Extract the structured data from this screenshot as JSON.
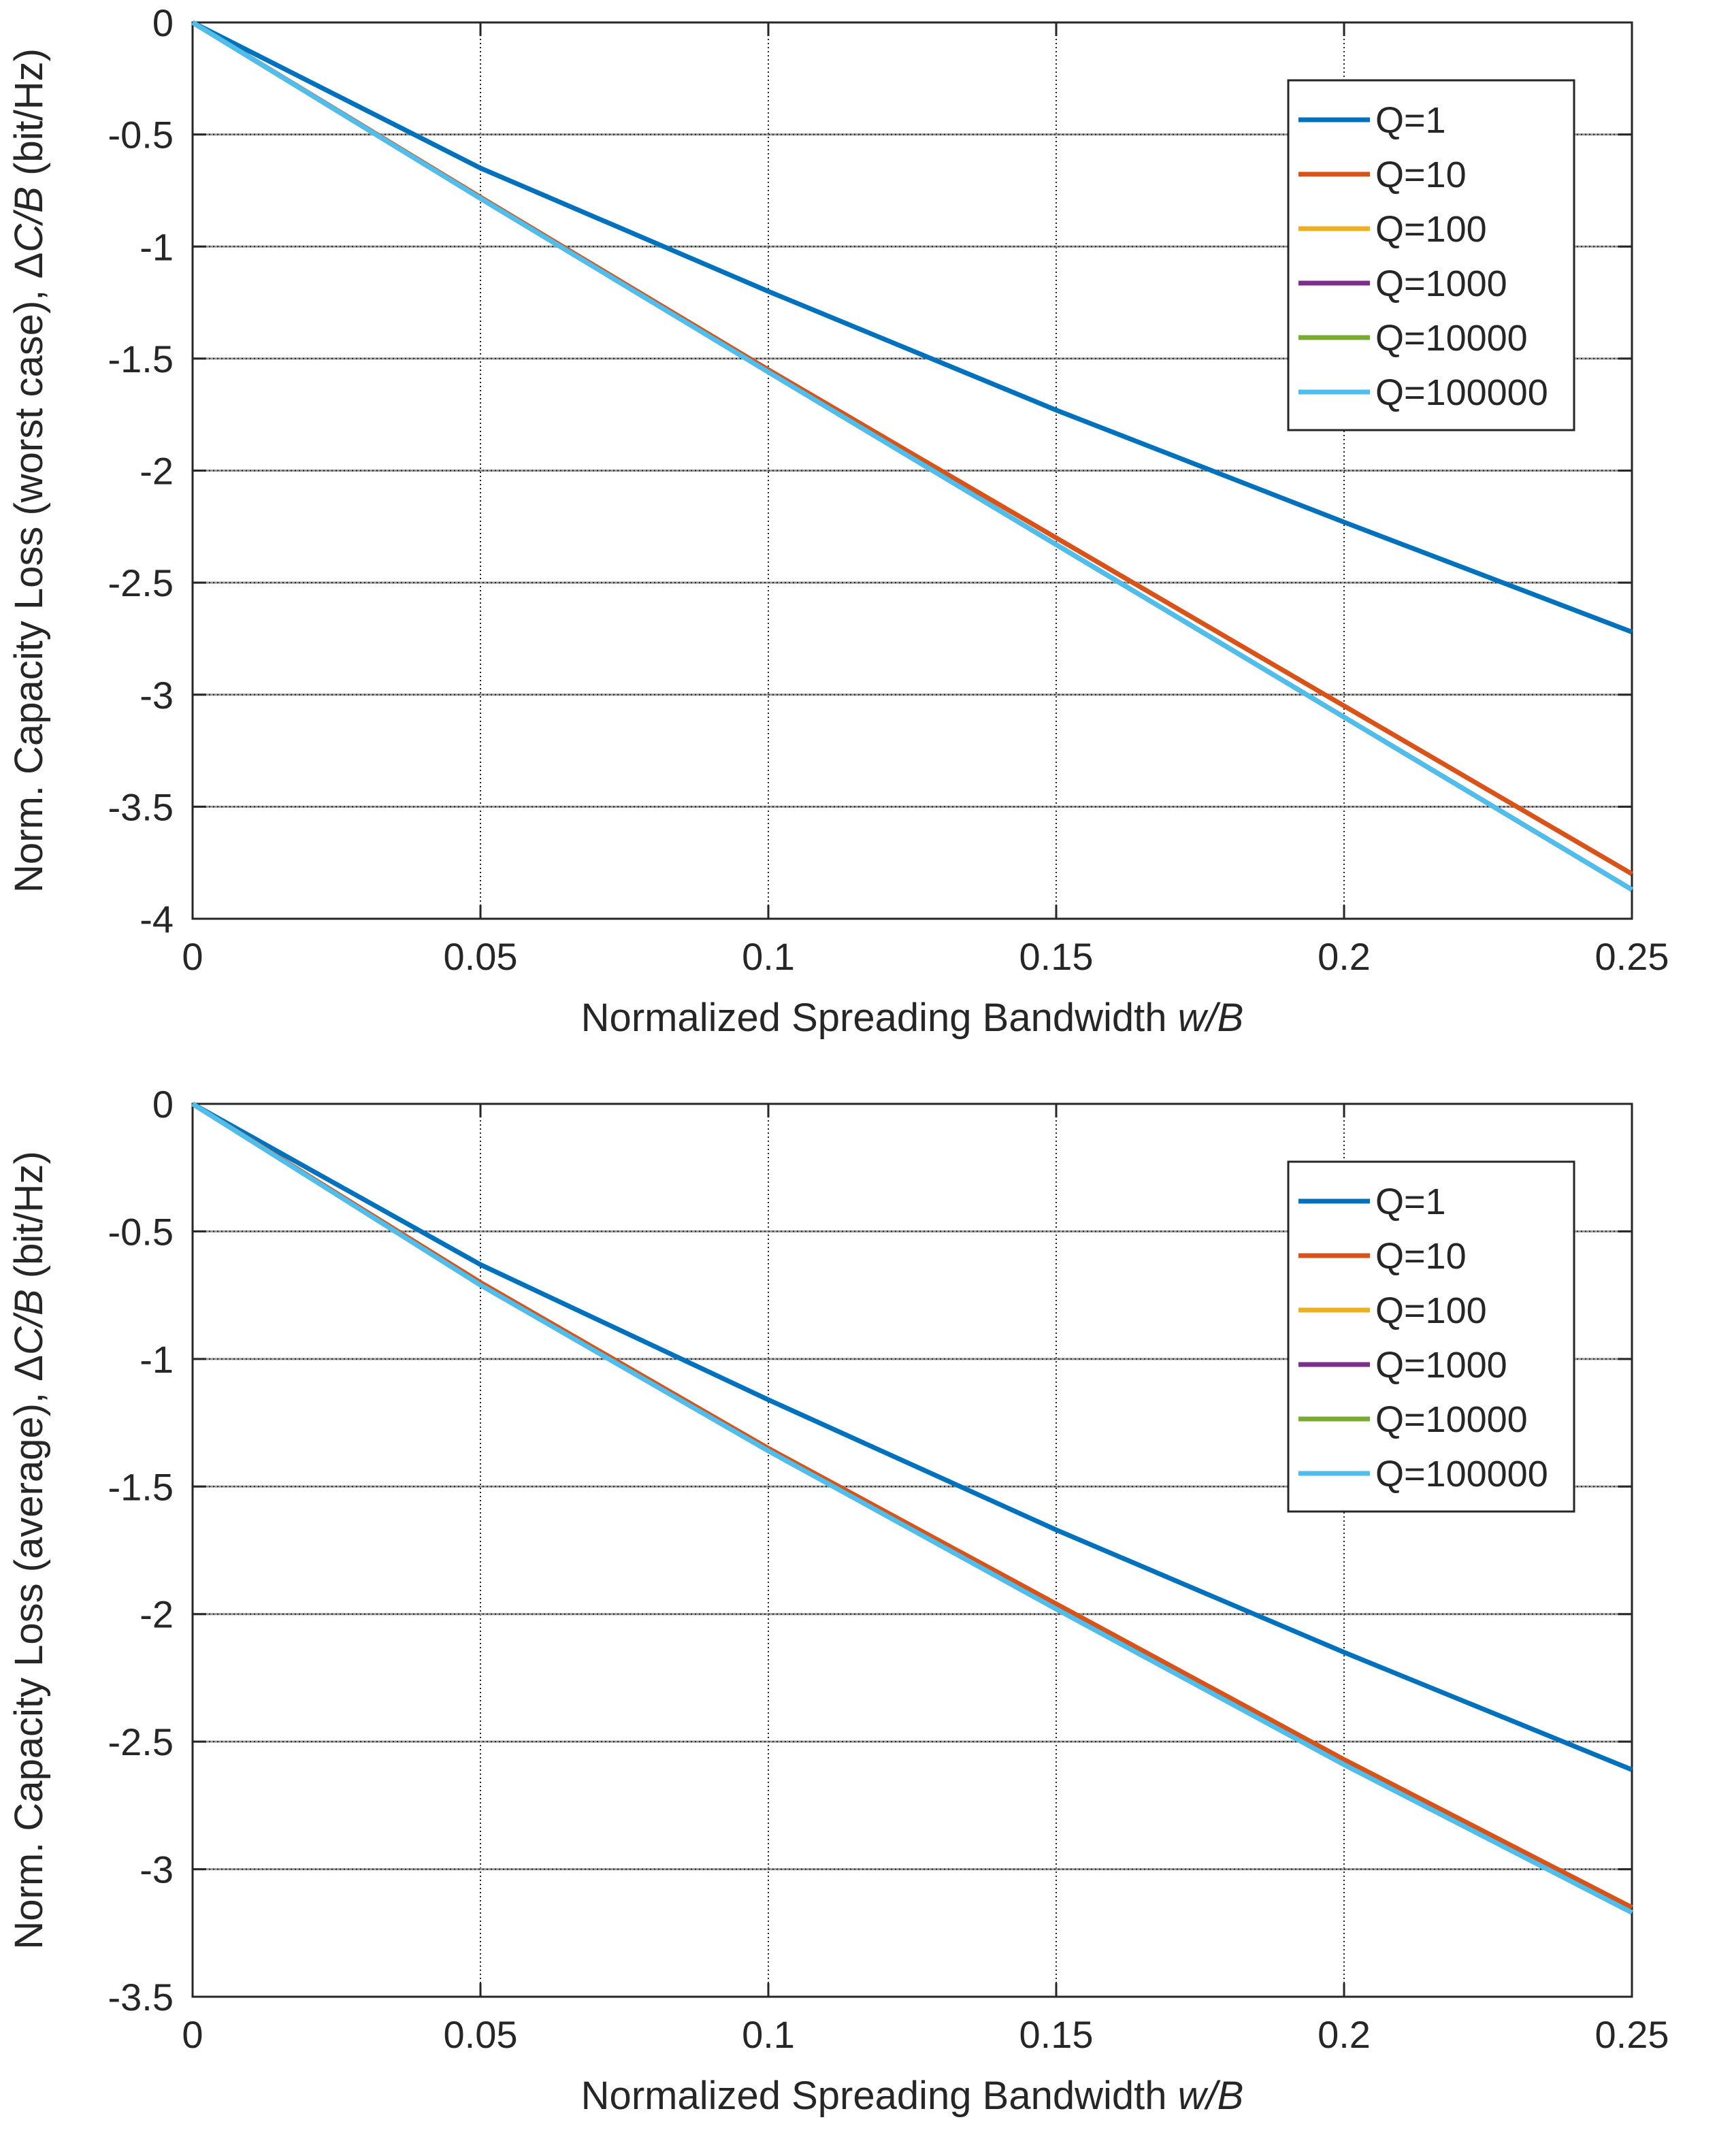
{
  "colors": {
    "Q=1": "#0072BD",
    "Q=10": "#D95319",
    "Q=100": "#EDB120",
    "Q=1000": "#7E2F8E",
    "Q=10000": "#77AC30",
    "Q=100000": "#4DBEEE",
    "grid_dotted": "#262626",
    "grid_solid": "#999999",
    "axes": "#262626"
  },
  "chart_data": [
    {
      "type": "line",
      "title": "",
      "xlabel": "Normalized Spreading Bandwidth",
      "xlabel_italic": "w/B",
      "ylabel": "Norm. Capacity Loss (worst case),",
      "ylabel_symbol": "Δ",
      "ylabel_italic": "C/B",
      "ylabel_unit": "(bit/Hz)",
      "xlim": [
        0,
        0.25
      ],
      "ylim": [
        -4,
        0
      ],
      "xticks": [
        0,
        0.05,
        0.1,
        0.15,
        0.2,
        0.25
      ],
      "xtick_labels": [
        "0",
        "0.05",
        "0.1",
        "0.15",
        "0.2",
        "0.25"
      ],
      "yticks": [
        0,
        -0.5,
        -1,
        -1.5,
        -2,
        -2.5,
        -3,
        -3.5,
        -4
      ],
      "ytick_labels": [
        "0",
        "-0.5",
        "-1",
        "-1.5",
        "-2",
        "-2.5",
        "-3",
        "-3.5",
        "-4"
      ],
      "grid": true,
      "legend_position": "top-right",
      "x": [
        0,
        0.05,
        0.1,
        0.15,
        0.2,
        0.25
      ],
      "series": [
        {
          "name": "Q=1",
          "values": [
            0,
            -0.65,
            -1.2,
            -1.73,
            -2.23,
            -2.72
          ]
        },
        {
          "name": "Q=10",
          "values": [
            0,
            -0.78,
            -1.55,
            -2.3,
            -3.05,
            -3.8
          ]
        },
        {
          "name": "Q=100",
          "values": [
            0,
            -0.785,
            -1.56,
            -2.33,
            -3.1,
            -3.87
          ]
        },
        {
          "name": "Q=1000",
          "values": [
            0,
            -0.785,
            -1.56,
            -2.33,
            -3.1,
            -3.87
          ]
        },
        {
          "name": "Q=10000",
          "values": [
            0,
            -0.785,
            -1.56,
            -2.33,
            -3.1,
            -3.87
          ]
        },
        {
          "name": "Q=100000",
          "values": [
            0,
            -0.785,
            -1.56,
            -2.33,
            -3.1,
            -3.87
          ]
        }
      ]
    },
    {
      "type": "line",
      "title": "",
      "xlabel": "Normalized Spreading Bandwidth",
      "xlabel_italic": "w/B",
      "ylabel": "Norm. Capacity Loss (average),",
      "ylabel_symbol": "Δ",
      "ylabel_italic": "C/B",
      "ylabel_unit": "(bit/Hz)",
      "xlim": [
        0,
        0.25
      ],
      "ylim": [
        -3.5,
        0
      ],
      "xticks": [
        0,
        0.05,
        0.1,
        0.15,
        0.2,
        0.25
      ],
      "xtick_labels": [
        "0",
        "0.05",
        "0.1",
        "0.15",
        "0.2",
        "0.25"
      ],
      "yticks": [
        0,
        -0.5,
        -1,
        -1.5,
        -2,
        -2.5,
        -3,
        -3.5
      ],
      "ytick_labels": [
        "0",
        "-0.5",
        "-1",
        "-1.5",
        "-2",
        "-2.5",
        "-3",
        "-3.5"
      ],
      "grid": true,
      "legend_position": "top-right",
      "x": [
        0,
        0.05,
        0.1,
        0.15,
        0.2,
        0.25
      ],
      "series": [
        {
          "name": "Q=1",
          "values": [
            0,
            -0.63,
            -1.16,
            -1.67,
            -2.15,
            -2.61
          ]
        },
        {
          "name": "Q=10",
          "values": [
            0,
            -0.7,
            -1.35,
            -1.96,
            -2.57,
            -3.15
          ]
        },
        {
          "name": "Q=100",
          "values": [
            0,
            -0.71,
            -1.36,
            -1.98,
            -2.59,
            -3.17
          ]
        },
        {
          "name": "Q=1000",
          "values": [
            0,
            -0.71,
            -1.36,
            -1.98,
            -2.59,
            -3.17
          ]
        },
        {
          "name": "Q=10000",
          "values": [
            0,
            -0.71,
            -1.36,
            -1.98,
            -2.59,
            -3.17
          ]
        },
        {
          "name": "Q=100000",
          "values": [
            0,
            -0.71,
            -1.36,
            -1.98,
            -2.59,
            -3.17
          ]
        }
      ]
    }
  ]
}
